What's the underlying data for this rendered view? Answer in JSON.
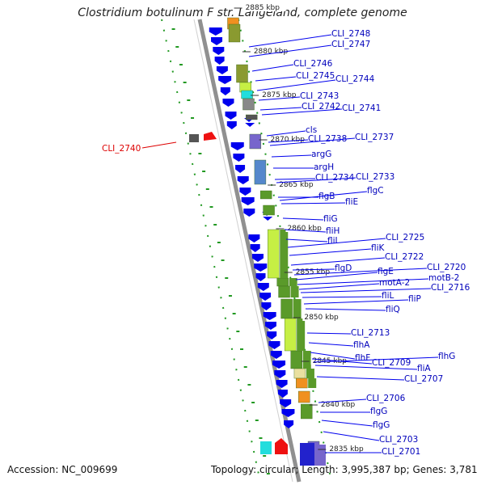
{
  "title": "Clostridium botulinum F str. Langeland, complete genome",
  "footer": {
    "accession": "Accession: NC_009699",
    "summary": "Topology: circular; Length: 3,995,387 bp; Genes: 3,781"
  },
  "ruler_labels": [
    "2885 kbp",
    "2880 kbp",
    "2875 kbp",
    "2870 kbp",
    "2865 kbp",
    "2860 kbp",
    "2855 kbp",
    "2850 kbp",
    "2845 kbp",
    "2840 kbp",
    "2835 kbp"
  ],
  "gene_labels": [
    "CLI_2748",
    "CLI_2747",
    "CLI_2746",
    "CLI_2745",
    "CLI_2744",
    "CLI_2743",
    "CLI_2742",
    "CLI_2741",
    "cls",
    "CLI_2738",
    "CLI_2737",
    "argG",
    "argH",
    "CLI_2734",
    "CLI_2733",
    "flgB",
    "flgC",
    "fliE",
    "fliG",
    "fliH",
    "fliI",
    "CLI_2725",
    "fliK",
    "CLI_2722",
    "flgD",
    "CLI_2720",
    "flgE",
    "motB-2",
    "motA-2",
    "CLI_2716",
    "fliL",
    "fliP",
    "fliQ",
    "CLI_2713",
    "flhA",
    "flhF",
    "CLI_2709",
    "flhG",
    "fliA",
    "CLI_2707",
    "CLI_2706",
    "flgG",
    "flgG",
    "CLI_2703",
    "CLI_2701"
  ],
  "left_gene_labels": [
    "CLI_2740"
  ],
  "colors": {
    "gene_arrow": "#0000ee",
    "backbone": "#909090",
    "label": "#0000bb",
    "left_label": "#dd0000",
    "dotted_track": "#229922",
    "cog_green": "#5a9a2a",
    "cog_lime": "#c6ef44",
    "cog_olive": "#8a9a30",
    "cog_cyan": "#22dddd",
    "cog_orange": "#f09020",
    "cog_steelblue": "#5588cc",
    "cog_purple": "#7766cc",
    "cog_grey": "#888888"
  }
}
